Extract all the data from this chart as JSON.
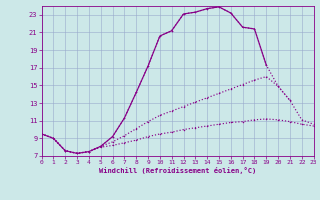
{
  "xlabel": "Windchill (Refroidissement éolien,°C)",
  "bg_color": "#cce8e8",
  "line_color": "#880088",
  "grid_color": "#99aacc",
  "xlim": [
    0,
    23
  ],
  "ylim": [
    7,
    24
  ],
  "xticks": [
    0,
    1,
    2,
    3,
    4,
    5,
    6,
    7,
    8,
    9,
    10,
    11,
    12,
    13,
    14,
    15,
    16,
    17,
    18,
    19,
    20,
    21,
    22,
    23
  ],
  "yticks": [
    7,
    9,
    11,
    13,
    15,
    17,
    19,
    21,
    23
  ],
  "line1": {
    "x": [
      0,
      1,
      2,
      3,
      4,
      5,
      6,
      7,
      8,
      9,
      10,
      11,
      12,
      13,
      14,
      15,
      16,
      17,
      18,
      19
    ],
    "y": [
      9.5,
      9.0,
      7.6,
      7.3,
      7.5,
      8.1,
      9.2,
      11.3,
      14.2,
      17.2,
      20.6,
      21.2,
      23.1,
      23.3,
      23.7,
      23.9,
      23.2,
      21.6,
      21.4,
      17.3
    ],
    "ls": "solid"
  },
  "line2": {
    "x": [
      0,
      1,
      2,
      3,
      4,
      5,
      6,
      7,
      8,
      9,
      10,
      11,
      12,
      13,
      14,
      15,
      16,
      17,
      18,
      19,
      20,
      21
    ],
    "y": [
      9.5,
      9.0,
      7.6,
      7.3,
      7.5,
      8.1,
      9.2,
      11.3,
      14.2,
      17.2,
      20.6,
      21.2,
      23.1,
      23.3,
      23.7,
      23.9,
      23.2,
      21.6,
      21.4,
      17.3,
      14.9,
      13.3
    ],
    "ls": "dotted"
  },
  "line3": {
    "x": [
      0,
      1,
      2,
      3,
      4,
      5,
      6,
      7,
      8,
      9,
      10,
      11,
      12,
      13,
      14,
      15,
      16,
      17,
      18,
      19,
      20,
      21,
      22,
      23
    ],
    "y": [
      9.5,
      9.0,
      7.6,
      7.3,
      7.5,
      8.1,
      8.6,
      9.3,
      10.1,
      10.9,
      11.6,
      12.1,
      12.6,
      13.1,
      13.6,
      14.1,
      14.6,
      15.1,
      15.6,
      16.0,
      14.9,
      13.3,
      11.1,
      10.6
    ],
    "ls": "dotted"
  },
  "line4": {
    "x": [
      0,
      1,
      2,
      3,
      4,
      5,
      6,
      7,
      8,
      9,
      10,
      11,
      12,
      13,
      14,
      15,
      16,
      17,
      18,
      19,
      20,
      21,
      22,
      23
    ],
    "y": [
      9.5,
      9.0,
      7.6,
      7.3,
      7.5,
      8.0,
      8.2,
      8.5,
      8.8,
      9.2,
      9.5,
      9.7,
      10.0,
      10.2,
      10.4,
      10.6,
      10.8,
      10.9,
      11.1,
      11.2,
      11.1,
      10.9,
      10.6,
      10.4
    ],
    "ls": "dotted"
  }
}
